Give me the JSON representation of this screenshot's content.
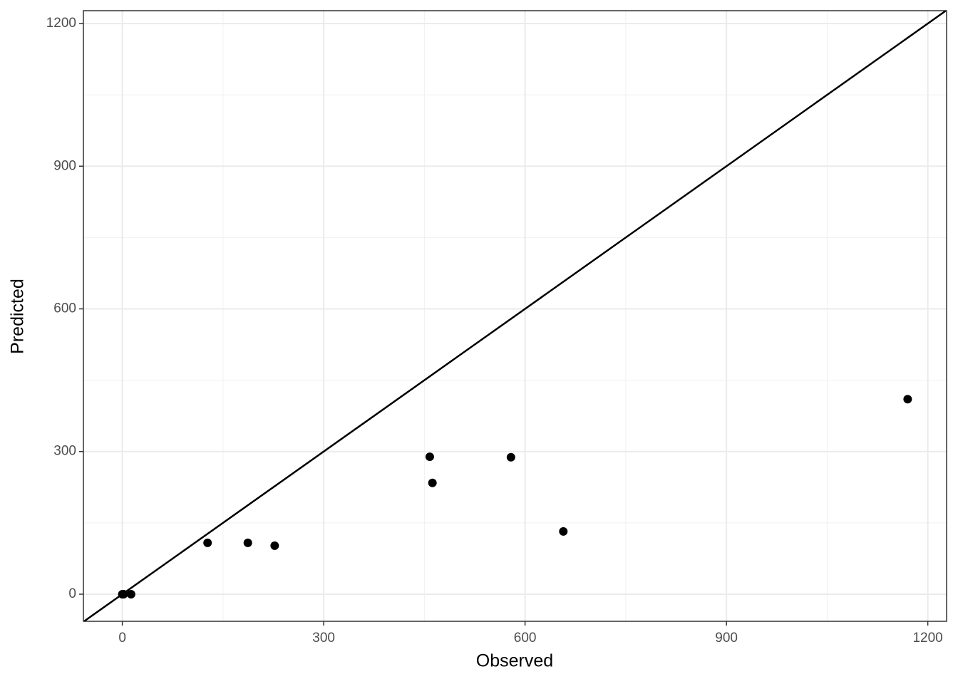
{
  "chart_data": {
    "type": "scatter",
    "x_label": "Observed",
    "y_label": "Predicted",
    "x": [
      0,
      2,
      13,
      127,
      187,
      227,
      458,
      462,
      579,
      657,
      1170
    ],
    "values": [
      0,
      0,
      0,
      108,
      108,
      102,
      289,
      234,
      288,
      132,
      410
    ],
    "color": "#000000",
    "xlim": [
      -58,
      1228
    ],
    "ylim": [
      -57,
      1227
    ],
    "xticks": [
      0,
      300,
      600,
      900,
      1200
    ],
    "yticks": [
      0,
      300,
      600,
      900,
      1200
    ],
    "grid": true,
    "minor_grid": true,
    "identity_line": true
  }
}
